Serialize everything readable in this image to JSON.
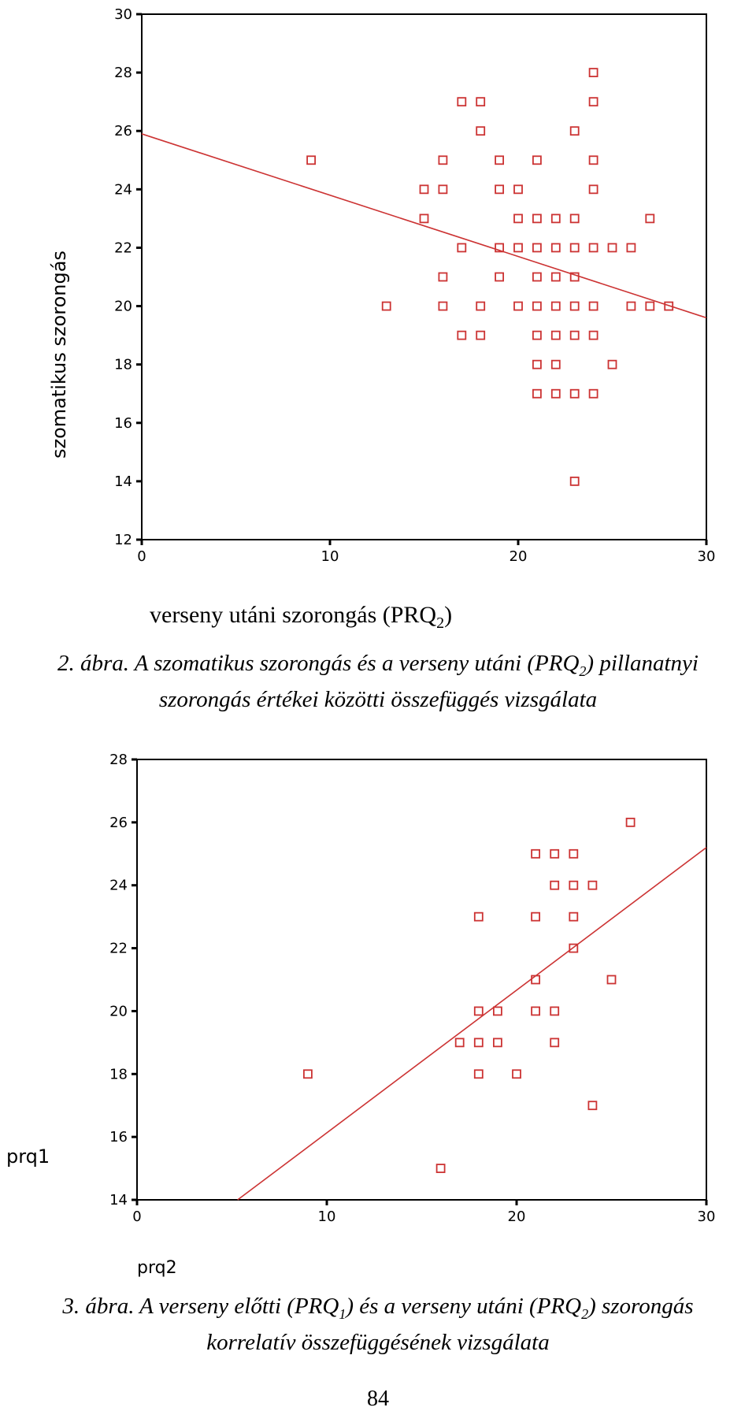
{
  "chart_data": [
    {
      "type": "scatter",
      "xlabel": "verseny utáni szorongás (PRQ2)",
      "ylabel": "szomatikus szorongás",
      "xlim": [
        0,
        30
      ],
      "ylim": [
        12,
        30
      ],
      "xticks": [
        0,
        10,
        20,
        30
      ],
      "yticks": [
        12,
        14,
        16,
        18,
        20,
        22,
        24,
        26,
        28,
        30
      ],
      "marker": "hollow-square",
      "color": "#cc3333",
      "fit_line": [
        [
          0,
          25.9
        ],
        [
          30,
          19.6
        ]
      ],
      "points": [
        [
          9,
          25
        ],
        [
          13,
          20
        ],
        [
          15,
          24
        ],
        [
          15,
          23
        ],
        [
          16,
          25
        ],
        [
          16,
          24
        ],
        [
          16,
          21
        ],
        [
          16,
          20
        ],
        [
          17,
          27
        ],
        [
          17,
          22
        ],
        [
          17,
          19
        ],
        [
          18,
          27
        ],
        [
          18,
          26
        ],
        [
          18,
          20
        ],
        [
          18,
          19
        ],
        [
          19,
          25
        ],
        [
          19,
          24
        ],
        [
          19,
          22
        ],
        [
          19,
          21
        ],
        [
          20,
          24
        ],
        [
          20,
          23
        ],
        [
          20,
          22
        ],
        [
          20,
          20
        ],
        [
          21,
          25
        ],
        [
          21,
          23
        ],
        [
          21,
          22
        ],
        [
          21,
          21
        ],
        [
          21,
          20
        ],
        [
          21,
          19
        ],
        [
          21,
          18
        ],
        [
          21,
          17
        ],
        [
          22,
          23
        ],
        [
          22,
          22
        ],
        [
          22,
          21
        ],
        [
          22,
          20
        ],
        [
          22,
          19
        ],
        [
          22,
          18
        ],
        [
          22,
          17
        ],
        [
          23,
          26
        ],
        [
          23,
          23
        ],
        [
          23,
          22
        ],
        [
          23,
          21
        ],
        [
          23,
          20
        ],
        [
          23,
          19
        ],
        [
          23,
          17
        ],
        [
          23,
          14
        ],
        [
          24,
          28
        ],
        [
          24,
          27
        ],
        [
          24,
          25
        ],
        [
          24,
          24
        ],
        [
          24,
          22
        ],
        [
          24,
          20
        ],
        [
          24,
          19
        ],
        [
          24,
          17
        ],
        [
          25,
          22
        ],
        [
          25,
          18
        ],
        [
          26,
          22
        ],
        [
          26,
          20
        ],
        [
          27,
          23
        ],
        [
          27,
          20
        ],
        [
          28,
          20
        ]
      ],
      "caption_line1": "2. ábra. A szomatikus szorongás és a verseny utáni (PRQ",
      "caption_line1_sub": "2",
      "caption_line1_end": ") pillanatnyi",
      "caption_line2": "szorongás értékei közötti összefüggés vizsgálata"
    },
    {
      "type": "scatter",
      "xlabel": "prq2",
      "ylabel": "prq1",
      "xlim": [
        0,
        30
      ],
      "ylim": [
        14,
        28
      ],
      "xticks": [
        0,
        10,
        20,
        30
      ],
      "yticks": [
        14,
        16,
        18,
        20,
        22,
        24,
        26,
        28
      ],
      "marker": "hollow-square",
      "color": "#cc3333",
      "fit_line": [
        [
          5.3,
          14
        ],
        [
          30,
          25.2
        ]
      ],
      "points": [
        [
          9,
          18
        ],
        [
          16,
          15
        ],
        [
          17,
          19
        ],
        [
          18,
          23
        ],
        [
          18,
          20
        ],
        [
          18,
          19
        ],
        [
          18,
          18
        ],
        [
          19,
          20
        ],
        [
          19,
          19
        ],
        [
          20,
          18
        ],
        [
          21,
          25
        ],
        [
          21,
          23
        ],
        [
          21,
          21
        ],
        [
          21,
          20
        ],
        [
          22,
          25
        ],
        [
          22,
          24
        ],
        [
          22,
          20
        ],
        [
          22,
          19
        ],
        [
          23,
          25
        ],
        [
          23,
          24
        ],
        [
          23,
          23
        ],
        [
          23,
          22
        ],
        [
          24,
          24
        ],
        [
          24,
          17
        ],
        [
          25,
          21
        ],
        [
          26,
          26
        ]
      ],
      "caption_line1_a": "3. ábra. A verseny előtti (PRQ",
      "caption_line1_sub_a": "1",
      "caption_line1_b": ") és a verseny utáni (PRQ",
      "caption_line1_sub_b": "2",
      "caption_line1_c": ") szorongás",
      "caption_line2": "korrelatív összefüggésének vizsgálata"
    }
  ],
  "page_number": "84"
}
